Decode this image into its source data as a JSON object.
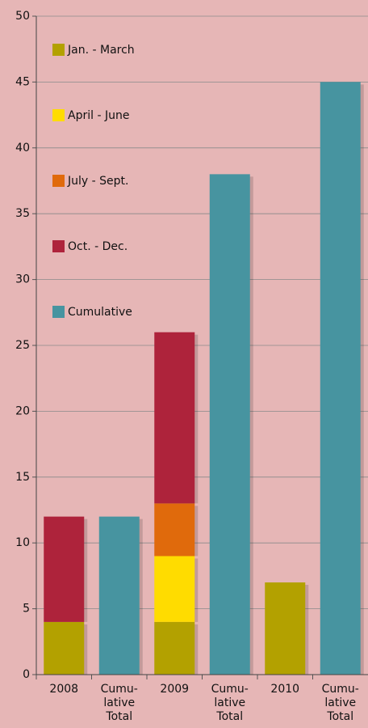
{
  "chart_data": {
    "type": "stacked_bar",
    "categories": [
      "2008",
      "Cumu-\nlative\nTotal",
      "2009",
      "Cumu-\nlative\nTotal",
      "2010",
      "Cumu-\nlative\nTotal"
    ],
    "series": [
      {
        "name": "Jan. - March",
        "color": "#b3a100",
        "values": [
          4,
          null,
          4,
          null,
          7,
          null
        ]
      },
      {
        "name": "April - June",
        "color": "#ffdc00",
        "values": [
          null,
          null,
          5,
          null,
          null,
          null
        ]
      },
      {
        "name": "July - Sept.",
        "color": "#e06a0c",
        "values": [
          null,
          null,
          4,
          null,
          null,
          null
        ]
      },
      {
        "name": "Oct. - Dec.",
        "color": "#ae233b",
        "values": [
          8,
          null,
          13,
          null,
          null,
          null
        ]
      },
      {
        "name": "Cumulative",
        "color": "#4794a0",
        "values": [
          null,
          12,
          null,
          38,
          null,
          45
        ]
      }
    ],
    "ylim": [
      0,
      50
    ],
    "yticks": [
      0,
      5,
      10,
      15,
      20,
      25,
      30,
      35,
      40,
      45,
      50
    ],
    "grid": true,
    "legend": "left"
  }
}
